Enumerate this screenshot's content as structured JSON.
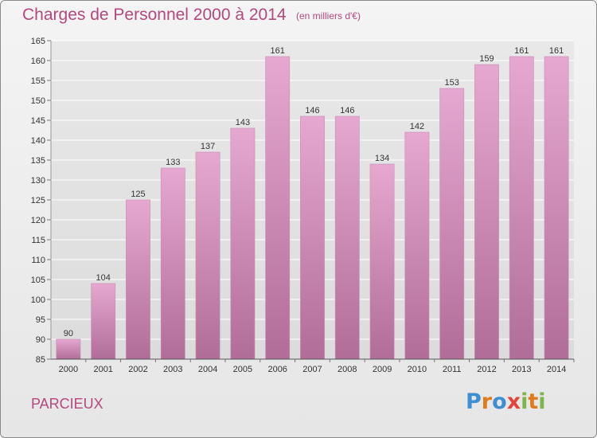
{
  "header": {
    "title": "Charges de Personnel 2000 à 2014",
    "subtitle": "(en milliers d'€)"
  },
  "footer": {
    "commune": "PARCIEUX",
    "logo": "Proxiti"
  },
  "colors": {
    "title": "#b5487e",
    "bar_top": "#e6a8d0",
    "bar_bottom": "#b06d98",
    "grid": "#ffffff",
    "logo_letters": [
      "#3d8fd1",
      "#e07b1a",
      "#3d8fd1",
      "#e2453a",
      "#7ab648",
      "#e07b1a",
      "#7ab648"
    ]
  },
  "chart_data": {
    "type": "bar",
    "categories": [
      "2000",
      "2001",
      "2002",
      "2003",
      "2004",
      "2005",
      "2006",
      "2007",
      "2008",
      "2009",
      "2010",
      "2011",
      "2012",
      "2013",
      "2014"
    ],
    "values": [
      90,
      104,
      125,
      133,
      137,
      143,
      161,
      146,
      146,
      134,
      142,
      153,
      159,
      161,
      161
    ],
    "ylim": [
      85,
      165
    ],
    "yticks": [
      85,
      90,
      95,
      100,
      105,
      110,
      115,
      120,
      125,
      130,
      135,
      140,
      145,
      150,
      155,
      160,
      165
    ],
    "grid": true,
    "title": "Charges de Personnel 2000 à 2014",
    "xlabel": "",
    "ylabel": ""
  }
}
